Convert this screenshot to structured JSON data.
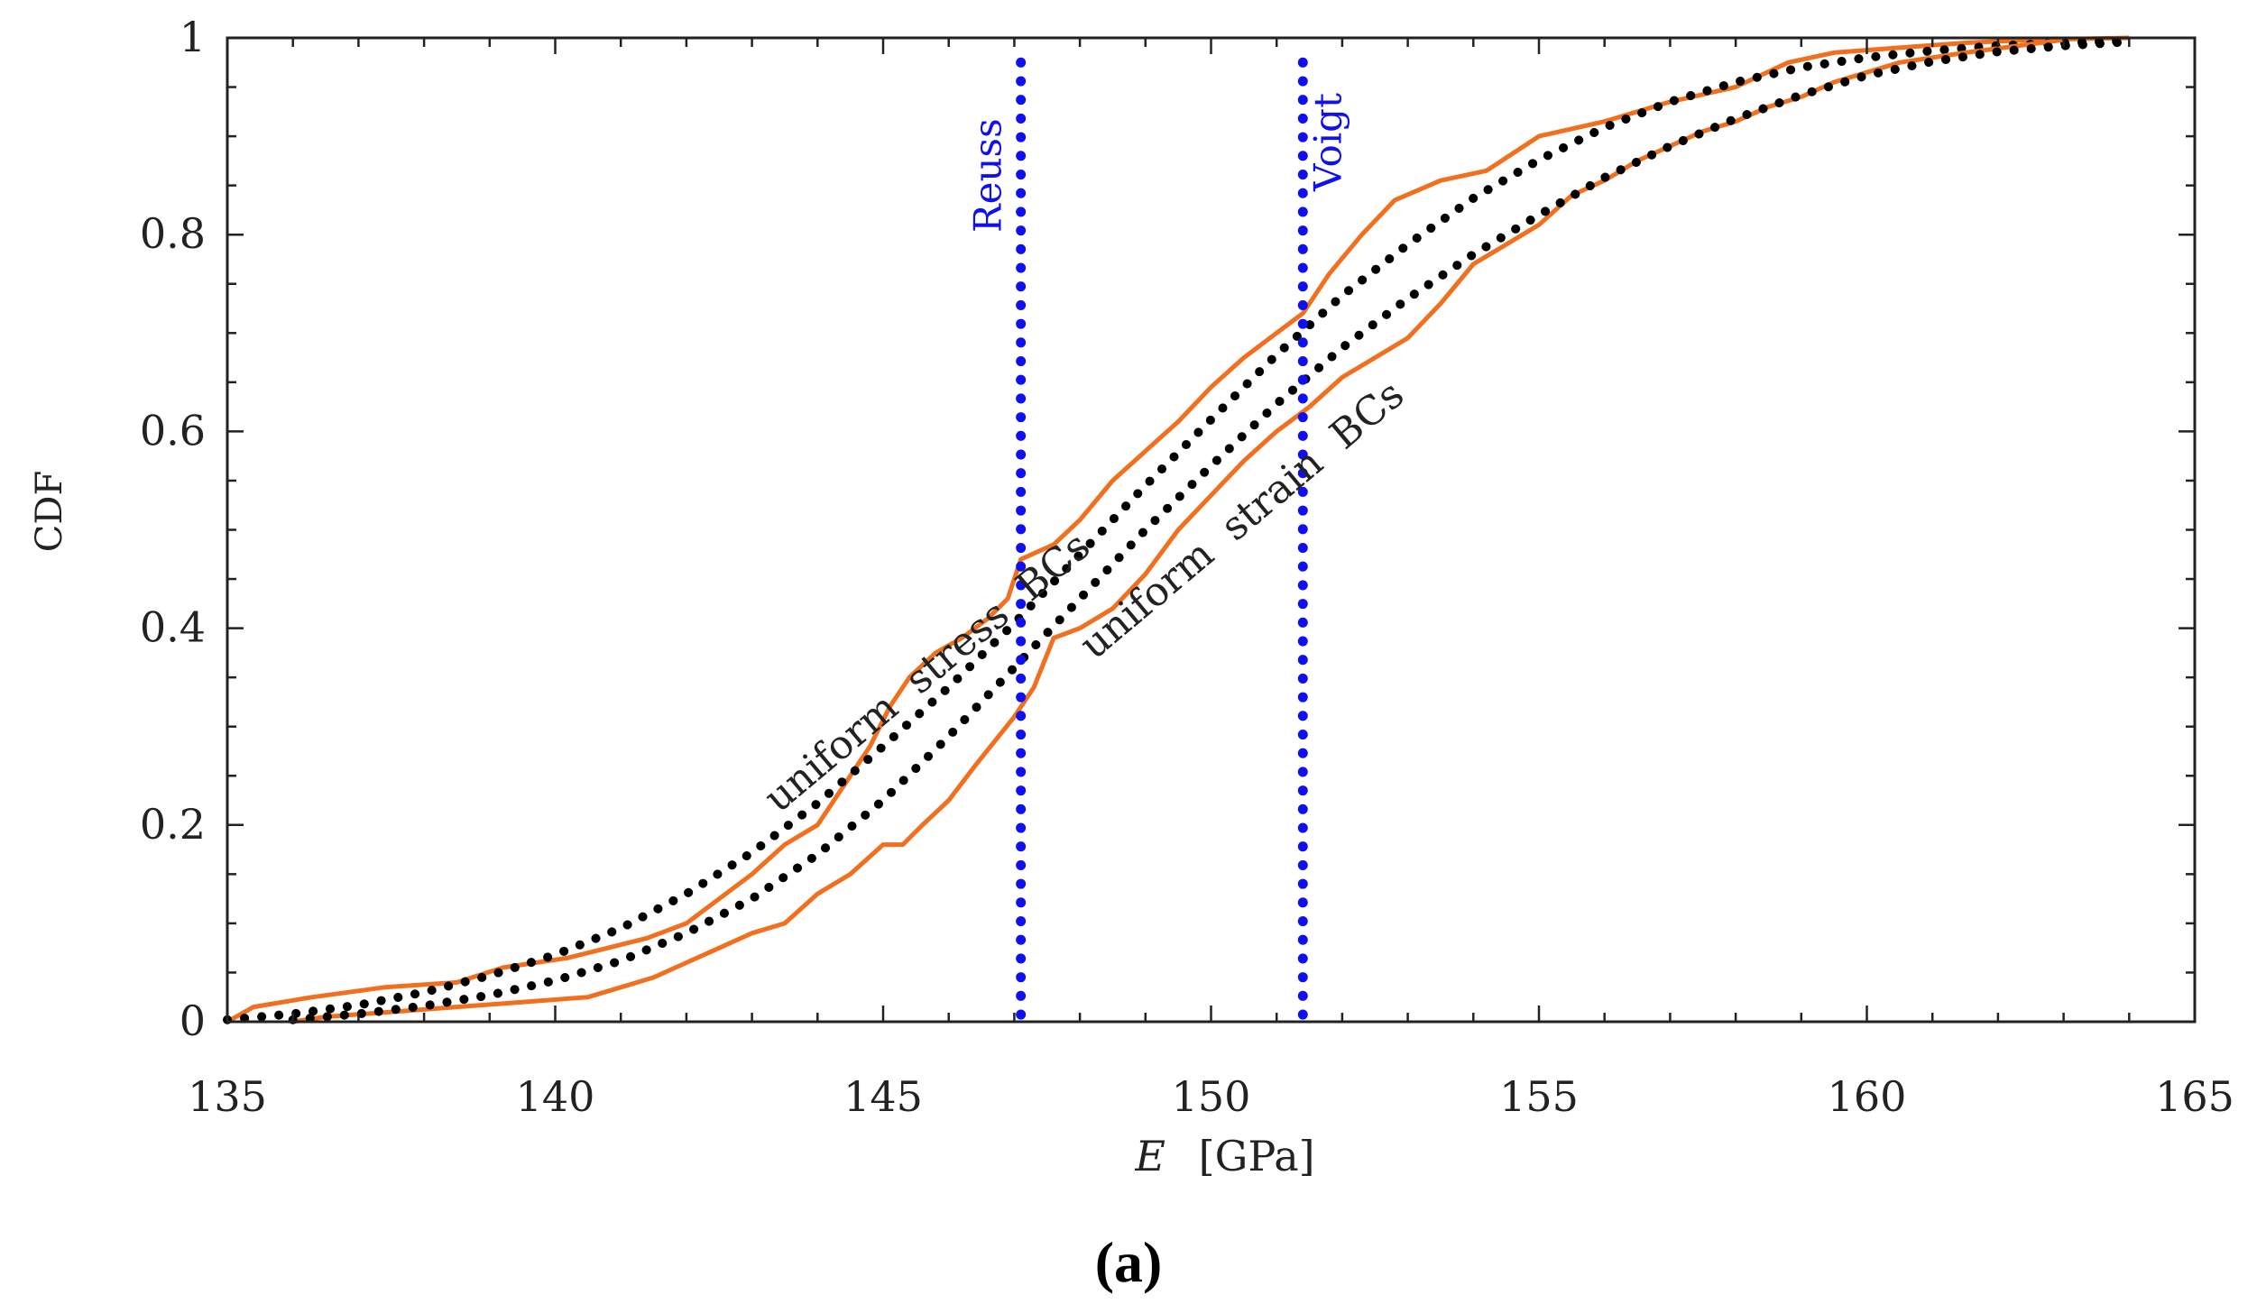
{
  "chart_data": {
    "type": "line",
    "title": "",
    "xlabel_var": "E",
    "xlabel_unit": "[GPa]",
    "ylabel": "CDF",
    "xlim": [
      135,
      165
    ],
    "ylim": [
      0,
      1
    ],
    "xticks": [
      135,
      140,
      145,
      150,
      155,
      160,
      165
    ],
    "yticks": [
      0,
      0.2,
      0.4,
      0.6,
      0.8,
      1
    ],
    "ytick_labels": [
      "0",
      "0.2",
      "0.4",
      "0.6",
      "0.8",
      "1"
    ],
    "caption": "(a)",
    "colors": {
      "empirical": "#f07020",
      "fit": "#000000",
      "bound": "#1010ee",
      "axis": "#222222"
    },
    "annotations": [
      {
        "text": "uniform  stress  BCs",
        "x": 145.8,
        "y": 0.345,
        "angle_deg": -40
      },
      {
        "text": "uniform  strain  BCs",
        "x": 150.6,
        "y": 0.5,
        "angle_deg": -40
      }
    ],
    "bounds": [
      {
        "name": "Reuss",
        "x": 147.1
      },
      {
        "name": "Voigt",
        "x": 151.4
      }
    ],
    "series": [
      {
        "name": "uniform stress BCs (empirical)",
        "style": "solid",
        "x": [
          135.0,
          135.4,
          136.3,
          137.4,
          138.5,
          139.2,
          140.2,
          140.8,
          141.4,
          142.0,
          142.5,
          143.0,
          143.5,
          144.0,
          144.4,
          144.8,
          145.1,
          145.4,
          145.8,
          146.2,
          146.6,
          146.9,
          147.1,
          147.6,
          148.0,
          148.5,
          149.0,
          149.5,
          150.0,
          150.5,
          151.0,
          151.4,
          151.8,
          152.3,
          152.8,
          153.5,
          154.2,
          155.0,
          156.0,
          157.0,
          158.0,
          158.8,
          159.5,
          160.5,
          161.5,
          162.5,
          164.0
        ],
        "y": [
          0.0,
          0.015,
          0.025,
          0.035,
          0.04,
          0.055,
          0.065,
          0.075,
          0.085,
          0.1,
          0.125,
          0.15,
          0.18,
          0.2,
          0.24,
          0.28,
          0.32,
          0.35,
          0.375,
          0.39,
          0.41,
          0.43,
          0.47,
          0.485,
          0.51,
          0.55,
          0.58,
          0.61,
          0.645,
          0.675,
          0.7,
          0.72,
          0.76,
          0.8,
          0.835,
          0.855,
          0.865,
          0.9,
          0.915,
          0.935,
          0.95,
          0.975,
          0.985,
          0.99,
          0.995,
          0.998,
          1.0
        ]
      },
      {
        "name": "uniform stress BCs (fit)",
        "style": "dotted",
        "x": [
          135.0,
          136.0,
          137.0,
          138.0,
          139.0,
          140.0,
          141.0,
          142.0,
          143.0,
          144.0,
          145.0,
          146.0,
          147.0,
          148.0,
          149.0,
          150.0,
          151.0,
          152.0,
          153.0,
          154.0,
          155.0,
          156.0,
          157.0,
          158.0,
          159.0,
          160.0,
          161.0,
          162.0,
          163.0,
          164.0
        ],
        "y": [
          0.002,
          0.008,
          0.017,
          0.03,
          0.047,
          0.068,
          0.095,
          0.13,
          0.172,
          0.222,
          0.28,
          0.34,
          0.405,
          0.475,
          0.545,
          0.612,
          0.678,
          0.738,
          0.79,
          0.837,
          0.876,
          0.909,
          0.935,
          0.955,
          0.97,
          0.98,
          0.987,
          0.992,
          0.995,
          0.997
        ]
      },
      {
        "name": "uniform strain BCs (empirical)",
        "style": "solid",
        "x": [
          136.0,
          136.5,
          137.5,
          138.5,
          139.5,
          140.5,
          141.0,
          141.5,
          142.0,
          142.5,
          143.0,
          143.5,
          144.0,
          144.5,
          145.0,
          145.3,
          145.6,
          146.0,
          146.4,
          146.7,
          147.0,
          147.3,
          147.6,
          148.0,
          148.5,
          149.0,
          149.5,
          150.0,
          150.5,
          151.0,
          151.5,
          152.0,
          152.5,
          153.0,
          153.5,
          154.0,
          154.5,
          155.0,
          155.5,
          156.0,
          156.5,
          157.0,
          157.5,
          158.0,
          158.5,
          159.0,
          159.5,
          160.5,
          161.5,
          163.0
        ],
        "y": [
          0.0,
          0.005,
          0.01,
          0.015,
          0.02,
          0.025,
          0.035,
          0.045,
          0.06,
          0.075,
          0.09,
          0.1,
          0.13,
          0.15,
          0.18,
          0.18,
          0.2,
          0.225,
          0.26,
          0.285,
          0.31,
          0.34,
          0.39,
          0.4,
          0.42,
          0.455,
          0.5,
          0.535,
          0.57,
          0.6,
          0.625,
          0.655,
          0.675,
          0.695,
          0.73,
          0.77,
          0.79,
          0.81,
          0.84,
          0.855,
          0.875,
          0.89,
          0.905,
          0.915,
          0.93,
          0.94,
          0.955,
          0.975,
          0.985,
          0.998
        ]
      },
      {
        "name": "uniform strain BCs (fit)",
        "style": "dotted",
        "x": [
          136.0,
          137.0,
          138.0,
          139.0,
          140.0,
          141.0,
          142.0,
          143.0,
          144.0,
          145.0,
          146.0,
          147.0,
          148.0,
          149.0,
          150.0,
          151.0,
          152.0,
          153.0,
          154.0,
          155.0,
          156.0,
          157.0,
          158.0,
          159.0,
          160.0,
          161.0,
          162.0,
          163.0,
          164.0
        ],
        "y": [
          0.002,
          0.008,
          0.016,
          0.027,
          0.042,
          0.062,
          0.09,
          0.125,
          0.17,
          0.225,
          0.29,
          0.36,
          0.43,
          0.5,
          0.565,
          0.628,
          0.685,
          0.735,
          0.78,
          0.82,
          0.858,
          0.89,
          0.918,
          0.942,
          0.962,
          0.976,
          0.986,
          0.992,
          0.996
        ]
      }
    ]
  }
}
